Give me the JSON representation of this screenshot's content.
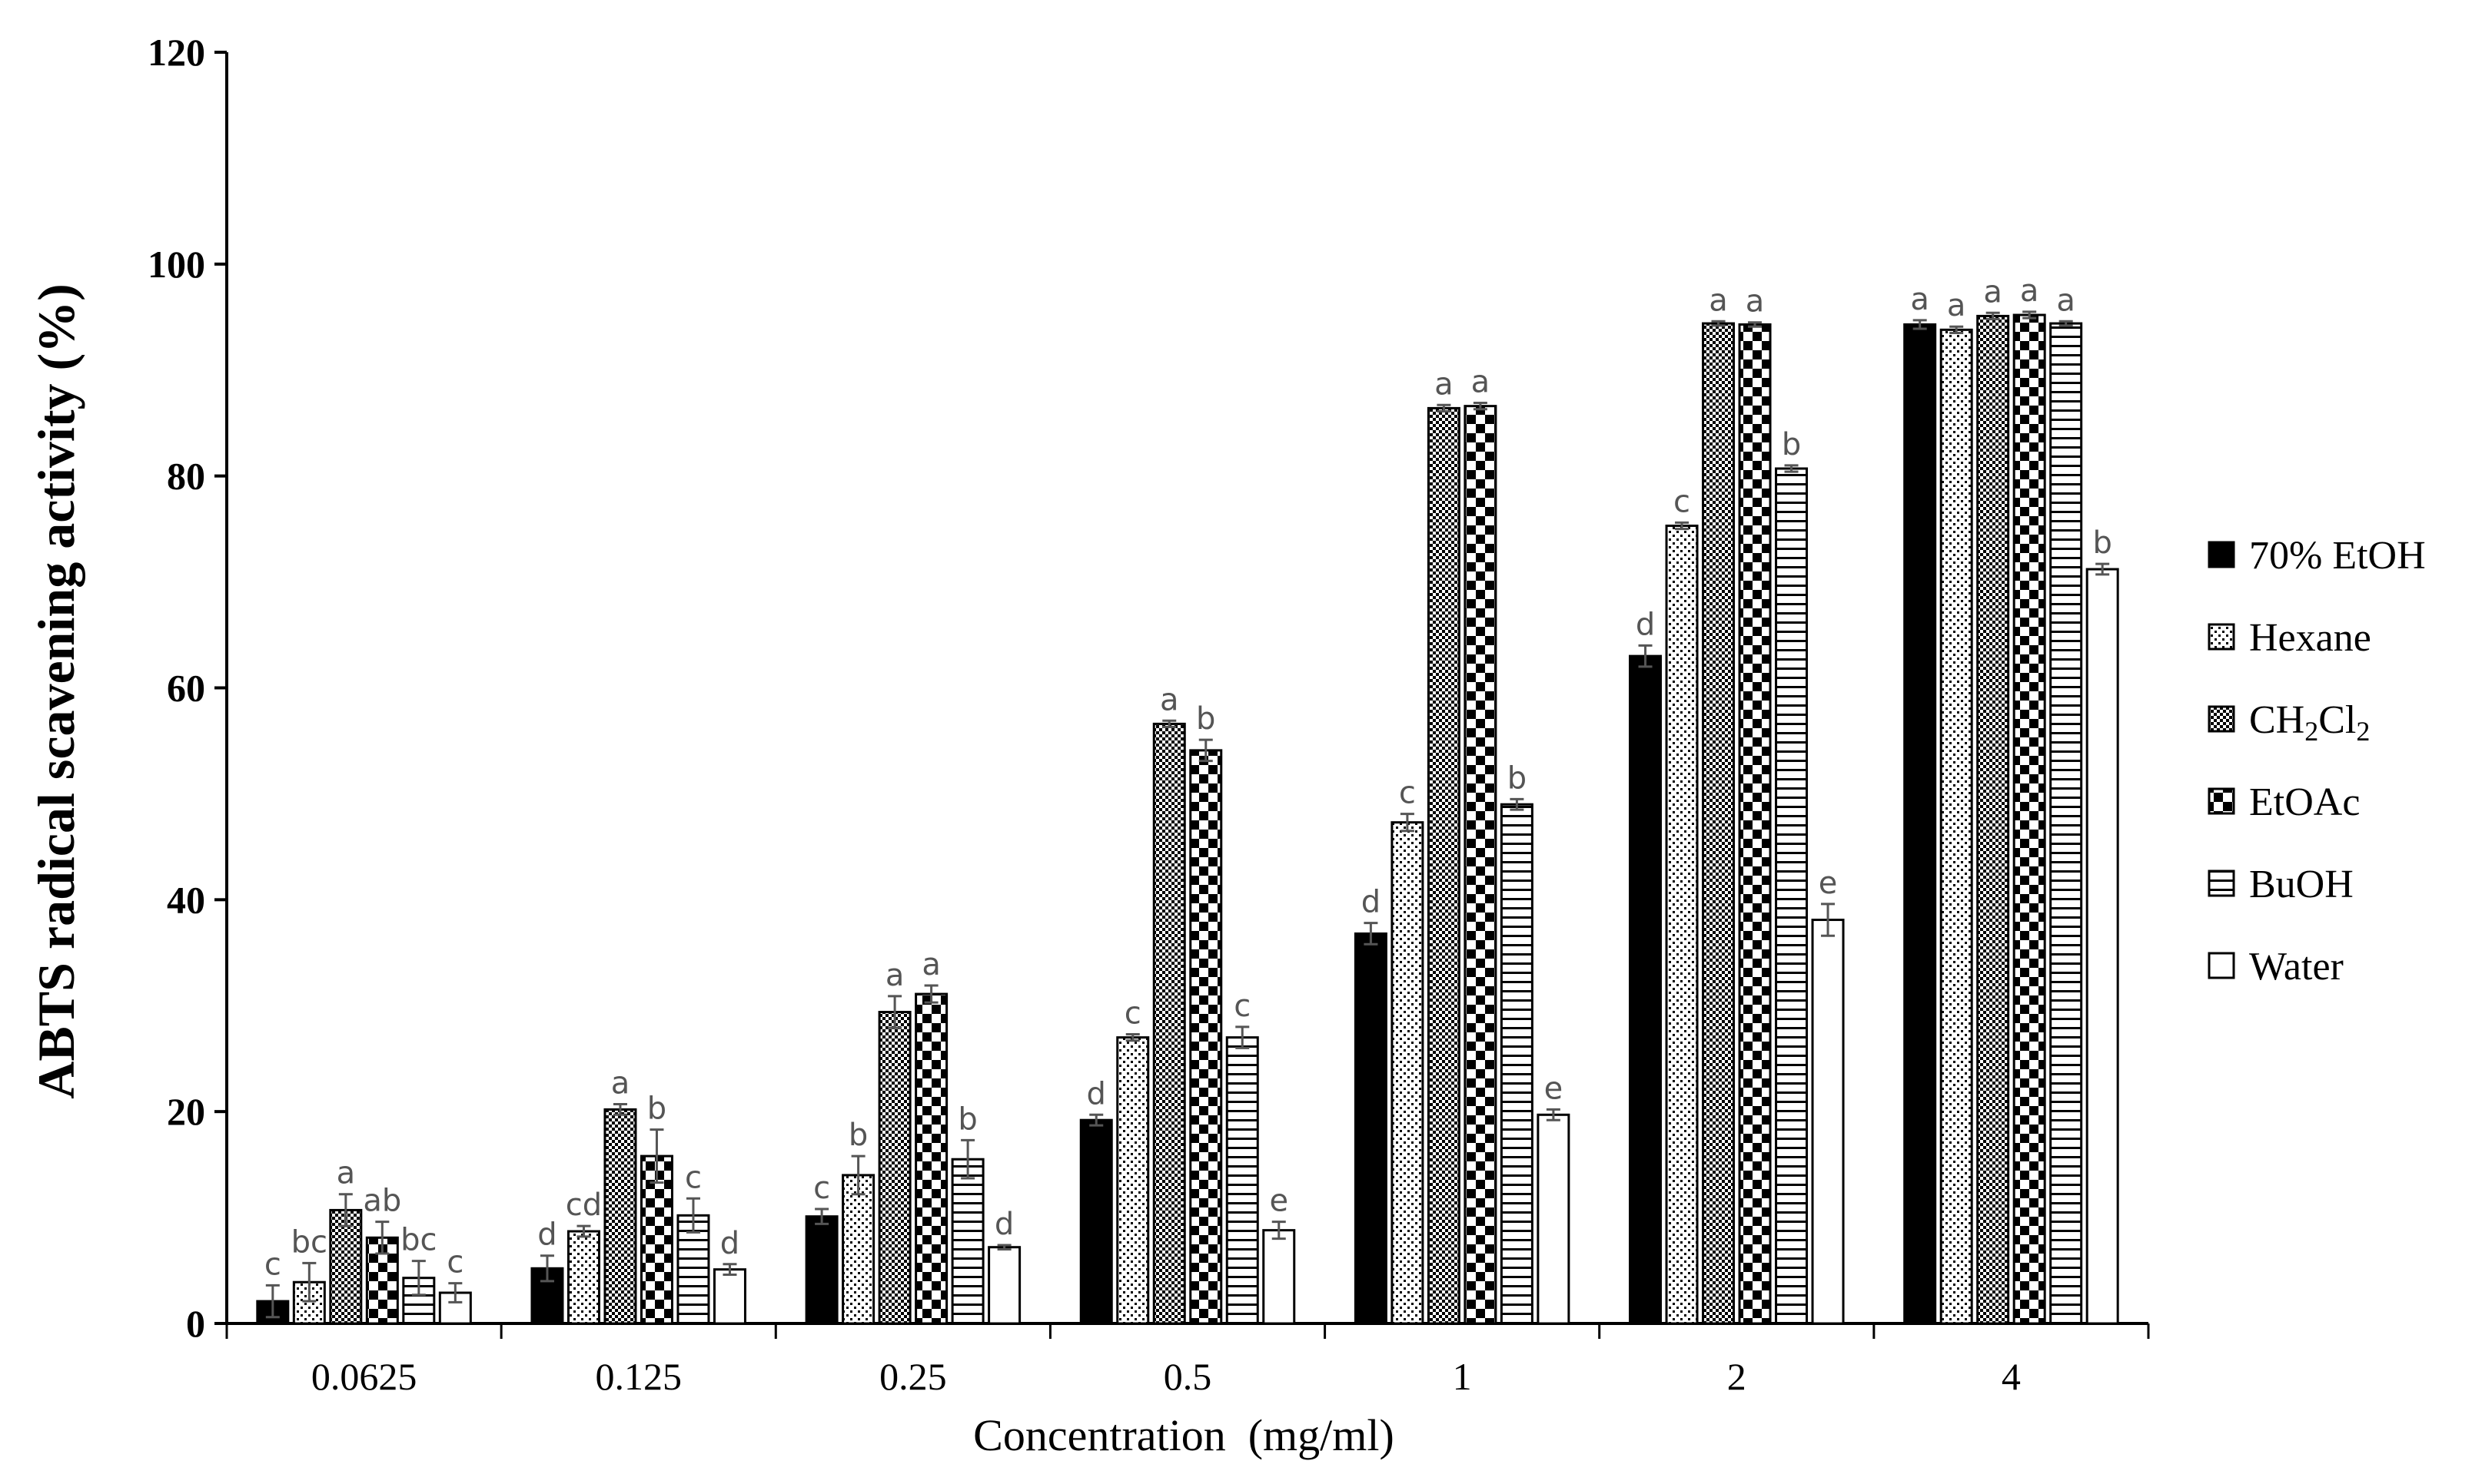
{
  "chart_data": {
    "type": "bar",
    "title": "",
    "xlabel": "Concentration  (mg/ml)",
    "ylabel": "ABTS radical scavening activity (%)",
    "ylim": [
      0,
      120
    ],
    "yticks": [
      0,
      20,
      40,
      60,
      80,
      100,
      120
    ],
    "grid": false,
    "legend_position": "right",
    "categories": [
      "0.0625",
      "0.125",
      "0.25",
      "0.5",
      "1",
      "2",
      "4"
    ],
    "series": [
      {
        "name": "70% EtOH",
        "pattern": "solid",
        "values": [
          2.1,
          5.2,
          10.1,
          19.2,
          36.8,
          63.0,
          94.3
        ],
        "errors": [
          1.5,
          1.2,
          0.7,
          0.5,
          1.0,
          1.0,
          0.4
        ],
        "letters": [
          "c",
          "d",
          "c",
          "d",
          "d",
          "d",
          "a"
        ]
      },
      {
        "name": "Hexane",
        "pattern": "dots",
        "values": [
          3.9,
          8.7,
          14.0,
          27.0,
          47.3,
          75.3,
          93.8
        ],
        "errors": [
          1.8,
          0.5,
          1.8,
          0.3,
          0.8,
          0.3,
          0.3
        ],
        "letters": [
          "bc",
          "cd",
          "b",
          "c",
          "c",
          "c",
          "a"
        ]
      },
      {
        "name": "CH2Cl2",
        "pattern": "checker",
        "values": [
          10.7,
          20.2,
          29.4,
          56.6,
          86.4,
          94.4,
          95.1
        ],
        "errors": [
          1.5,
          0.5,
          1.5,
          0.3,
          0.3,
          0.2,
          0.3
        ],
        "letters": [
          "a",
          "a",
          "a",
          "a",
          "a",
          "a",
          "a"
        ]
      },
      {
        "name": "EtOAc",
        "pattern": "bigchecker",
        "values": [
          8.1,
          15.8,
          31.1,
          54.1,
          86.6,
          94.3,
          95.2
        ],
        "errors": [
          1.5,
          2.5,
          0.8,
          1.0,
          0.3,
          0.2,
          0.3
        ],
        "letters": [
          "ab",
          "b",
          "a",
          "b",
          "a",
          "a",
          "a"
        ]
      },
      {
        "name": "BuOH",
        "pattern": "hlines",
        "values": [
          4.3,
          10.2,
          15.5,
          27.0,
          49.0,
          80.7,
          94.4
        ],
        "errors": [
          1.6,
          1.6,
          1.8,
          1.0,
          0.5,
          0.3,
          0.2
        ],
        "letters": [
          "bc",
          "c",
          "b",
          "c",
          "b",
          "b",
          "a"
        ]
      },
      {
        "name": "Water",
        "pattern": "white",
        "values": [
          2.9,
          5.1,
          7.2,
          8.8,
          19.7,
          38.1,
          71.2
        ],
        "errors": [
          0.9,
          0.5,
          0.2,
          0.8,
          0.5,
          1.5,
          0.5
        ],
        "letters": [
          "c",
          "d",
          "d",
          "e",
          "e",
          "e",
          "b"
        ]
      }
    ]
  },
  "legend": {
    "entries": [
      {
        "label": "70% EtOH"
      },
      {
        "label": "Hexane"
      },
      {
        "label_main": "CH",
        "sub1": "2",
        "label_mid": "Cl",
        "sub2": "2"
      },
      {
        "label": "EtOAc"
      },
      {
        "label": "BuOH"
      },
      {
        "label": "Water"
      }
    ]
  }
}
